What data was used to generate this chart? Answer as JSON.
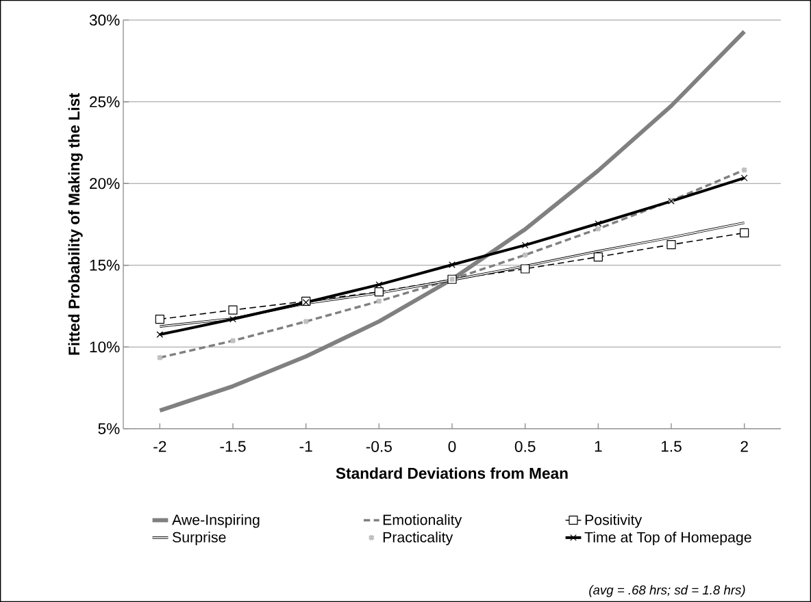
{
  "chart_data": {
    "type": "line",
    "xlabel": "Standard Deviations from Mean",
    "ylabel": "Fitted Probability of Making the List",
    "categories": [
      "-2",
      "-1.5",
      "-1",
      "-0.5",
      "0",
      "0.5",
      "1",
      "1.5",
      "2"
    ],
    "series": [
      {
        "name": "Awe-Inspiring",
        "color": "#808080",
        "marker": "none",
        "line_style": "solid",
        "values": [
          6.11,
          7.6,
          9.42,
          11.56,
          14.14,
          17.2,
          20.79,
          24.75,
          29.3
        ]
      },
      {
        "name": "Emotionality",
        "color": "#808080",
        "marker": "none",
        "line_style": "dashed",
        "values": [
          9.35,
          10.38,
          11.56,
          12.8,
          14.14,
          15.63,
          17.23,
          18.95,
          20.83
        ]
      },
      {
        "name": "Positivity",
        "color": "#000000",
        "marker": "square",
        "line_style": "dashed",
        "values": [
          11.7,
          12.26,
          12.8,
          13.37,
          14.14,
          14.78,
          15.51,
          16.26,
          16.98
        ]
      },
      {
        "name": "Surprise",
        "color": "#000000",
        "marker": "none",
        "line_style": "solid",
        "values": [
          11.25,
          11.74,
          12.66,
          13.3,
          14.1,
          14.95,
          15.86,
          16.7,
          17.6
        ]
      },
      {
        "name": "Practicality",
        "type": "scatter",
        "color": "#c0c0c0",
        "marker": "cross",
        "values": [
          9.35,
          10.38,
          11.56,
          12.8,
          14.14,
          15.63,
          17.23,
          18.95,
          20.83
        ]
      },
      {
        "name": "Time at Top of Homepage",
        "color": "#000000",
        "marker": "cross",
        "line_style": "solid",
        "values": [
          10.76,
          11.7,
          12.73,
          13.81,
          15.03,
          16.23,
          17.55,
          18.92,
          20.34
        ]
      }
    ],
    "ylim": [
      5,
      30
    ],
    "yticks": [
      {
        "value": 5,
        "label": "5%"
      },
      {
        "value": 10,
        "label": "10%"
      },
      {
        "value": 15,
        "label": "15%"
      },
      {
        "value": 20,
        "label": "20%"
      },
      {
        "value": 25,
        "label": "25%"
      },
      {
        "value": 30,
        "label": "30%"
      }
    ],
    "grid": "y",
    "legend": "bottom",
    "annotations": [
      "(avg = .68 hrs; sd = 1.8 hrs)"
    ]
  }
}
